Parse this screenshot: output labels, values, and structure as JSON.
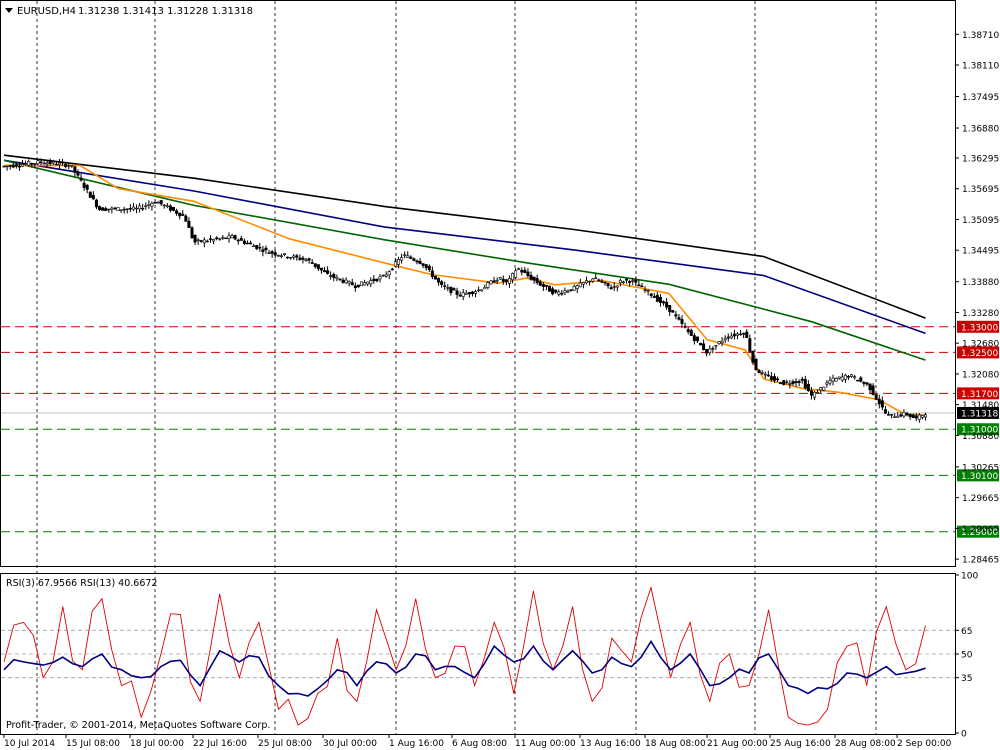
{
  "header": {
    "symbol": "EURUSD,H4",
    "ohlc": "1.31238 1.31413 1.31228 1.31318"
  },
  "rsi_header": "RSI(3) 67.9566  RSI(13) 40.6672",
  "footer": "Profit-Trader, © 2001-2014, MetaQuotes Software Corp.",
  "chart_data": [
    {
      "type": "candlestick",
      "title": "EURUSD,H4",
      "x_labels": [
        "10 Jul 2014",
        "15 Jul 08:00",
        "18 Jul 00:00",
        "22 Jul 16:00",
        "25 Jul 08:00",
        "30 Jul 00:00",
        "1 Aug 16:00",
        "6 Aug 08:00",
        "11 Aug 00:00",
        "13 Aug 16:00",
        "18 Aug 08:00",
        "21 Aug 00:00",
        "25 Aug 16:00",
        "28 Aug 08:00",
        "2 Sep 00:00"
      ],
      "y_ticks": [
        "1.38710",
        "1.38110",
        "1.37495",
        "1.36880",
        "1.36295",
        "1.35695",
        "1.35095",
        "1.34495",
        "1.33880",
        "1.33280",
        "1.32680",
        "1.32080",
        "1.31480",
        "1.30880",
        "1.30265",
        "1.29665",
        "1.29065",
        "1.28465"
      ],
      "ylim": [
        1.2835,
        1.3934
      ],
      "last_price": 1.31318,
      "last_price_label": "1.31318",
      "levels": [
        {
          "label": "1.33000",
          "value": 1.33,
          "color": "#cc0000"
        },
        {
          "label": "1.32500",
          "value": 1.325,
          "color": "#cc0000"
        },
        {
          "label": "1.31700",
          "value": 1.317,
          "color": "#cc0000"
        },
        {
          "label": "1.31000",
          "value": 1.31,
          "color": "#008000"
        },
        {
          "label": "1.30100",
          "value": 1.301,
          "color": "#008000"
        },
        {
          "label": "1.29000",
          "value": 1.29,
          "color": "#008000"
        }
      ],
      "moving_averages": [
        {
          "color": "#000000",
          "points": [
            [
              0,
              1.3635
            ],
            [
              0.2,
              1.359
            ],
            [
              0.4,
              1.3535
            ],
            [
              0.6,
              1.349
            ],
            [
              0.8,
              1.3437
            ],
            [
              0.97,
              1.3317
            ]
          ]
        },
        {
          "color": "#00007f",
          "points": [
            [
              0,
              1.3625
            ],
            [
              0.2,
              1.3565
            ],
            [
              0.4,
              1.3495
            ],
            [
              0.6,
              1.345
            ],
            [
              0.8,
              1.34
            ],
            [
              0.97,
              1.3287
            ]
          ]
        },
        {
          "color": "#006400",
          "points": [
            [
              0,
              1.3625
            ],
            [
              0.2,
              1.3537
            ],
            [
              0.4,
              1.347
            ],
            [
              0.55,
              1.3425
            ],
            [
              0.7,
              1.3383
            ],
            [
              0.85,
              1.331
            ],
            [
              0.97,
              1.3235
            ]
          ]
        },
        {
          "color": "#ff8c00",
          "points": [
            [
              0,
              1.3615
            ],
            [
              0.08,
              1.3615
            ],
            [
              0.12,
              1.357
            ],
            [
              0.2,
              1.3545
            ],
            [
              0.3,
              1.3472
            ],
            [
              0.4,
              1.3425
            ],
            [
              0.45,
              1.3402
            ],
            [
              0.52,
              1.3385
            ],
            [
              0.55,
              1.3395
            ],
            [
              0.58,
              1.3382
            ],
            [
              0.63,
              1.339
            ],
            [
              0.7,
              1.3365
            ],
            [
              0.74,
              1.3275
            ],
            [
              0.78,
              1.3255
            ],
            [
              0.8,
              1.3198
            ],
            [
              0.84,
              1.318
            ],
            [
              0.88,
              1.3172
            ],
            [
              0.92,
              1.3158
            ],
            [
              0.95,
              1.3128
            ],
            [
              0.97,
              1.3128
            ]
          ]
        }
      ],
      "price_path": [
        [
          0,
          1.3613
        ],
        [
          0.04,
          1.3622
        ],
        [
          0.07,
          1.3615
        ],
        [
          0.1,
          1.353
        ],
        [
          0.14,
          1.353
        ],
        [
          0.16,
          1.3545
        ],
        [
          0.19,
          1.3515
        ],
        [
          0.2,
          1.3465
        ],
        [
          0.24,
          1.3475
        ],
        [
          0.28,
          1.3445
        ],
        [
          0.32,
          1.343
        ],
        [
          0.34,
          1.3402
        ],
        [
          0.37,
          1.338
        ],
        [
          0.4,
          1.3398
        ],
        [
          0.42,
          1.344
        ],
        [
          0.44,
          1.3425
        ],
        [
          0.46,
          1.338
        ],
        [
          0.48,
          1.3362
        ],
        [
          0.5,
          1.3372
        ],
        [
          0.52,
          1.3395
        ],
        [
          0.53,
          1.3385
        ],
        [
          0.54,
          1.3415
        ],
        [
          0.56,
          1.3388
        ],
        [
          0.58,
          1.3365
        ],
        [
          0.6,
          1.3375
        ],
        [
          0.62,
          1.3395
        ],
        [
          0.64,
          1.3375
        ],
        [
          0.65,
          1.339
        ],
        [
          0.66,
          1.339
        ],
        [
          0.68,
          1.3365
        ],
        [
          0.7,
          1.3335
        ],
        [
          0.72,
          1.329
        ],
        [
          0.74,
          1.325
        ],
        [
          0.76,
          1.328
        ],
        [
          0.78,
          1.329
        ],
        [
          0.79,
          1.322
        ],
        [
          0.8,
          1.3205
        ],
        [
          0.82,
          1.319
        ],
        [
          0.84,
          1.3195
        ],
        [
          0.85,
          1.3165
        ],
        [
          0.87,
          1.3195
        ],
        [
          0.89,
          1.3205
        ],
        [
          0.9,
          1.3195
        ],
        [
          0.91,
          1.3185
        ],
        [
          0.93,
          1.3125
        ],
        [
          0.95,
          1.313
        ],
        [
          0.96,
          1.312
        ],
        [
          0.97,
          1.3132
        ]
      ]
    },
    {
      "type": "line",
      "title": "RSI(3) 67.9566  RSI(13) 40.6672",
      "y_ticks": [
        "100",
        "65",
        "50",
        "35",
        "0"
      ],
      "levels": [
        65,
        50,
        35
      ],
      "ylim": [
        0,
        100
      ],
      "series": [
        {
          "name": "RSI(3)",
          "color": "#e00000",
          "values": [
            45,
            70,
            35,
            80,
            40,
            85,
            30,
            10,
            50,
            75,
            20,
            88,
            35,
            70,
            15,
            5,
            25,
            60,
            20,
            78,
            40,
            85,
            35,
            55,
            30,
            70,
            25,
            90,
            40,
            80,
            20,
            60,
            45,
            92,
            35,
            70,
            20,
            50,
            30,
            78,
            10,
            5,
            15,
            55,
            30,
            80,
            40,
            68
          ]
        },
        {
          "name": "RSI(13)",
          "color": "#000080",
          "values": [
            40,
            45,
            43,
            48,
            42,
            50,
            40,
            35,
            42,
            46,
            30,
            52,
            45,
            48,
            30,
            25,
            28,
            40,
            30,
            45,
            38,
            50,
            40,
            42,
            35,
            55,
            45,
            55,
            40,
            52,
            38,
            48,
            42,
            58,
            40,
            50,
            30,
            35,
            38,
            50,
            30,
            25,
            28,
            38,
            35,
            42,
            38,
            41
          ]
        }
      ]
    }
  ]
}
